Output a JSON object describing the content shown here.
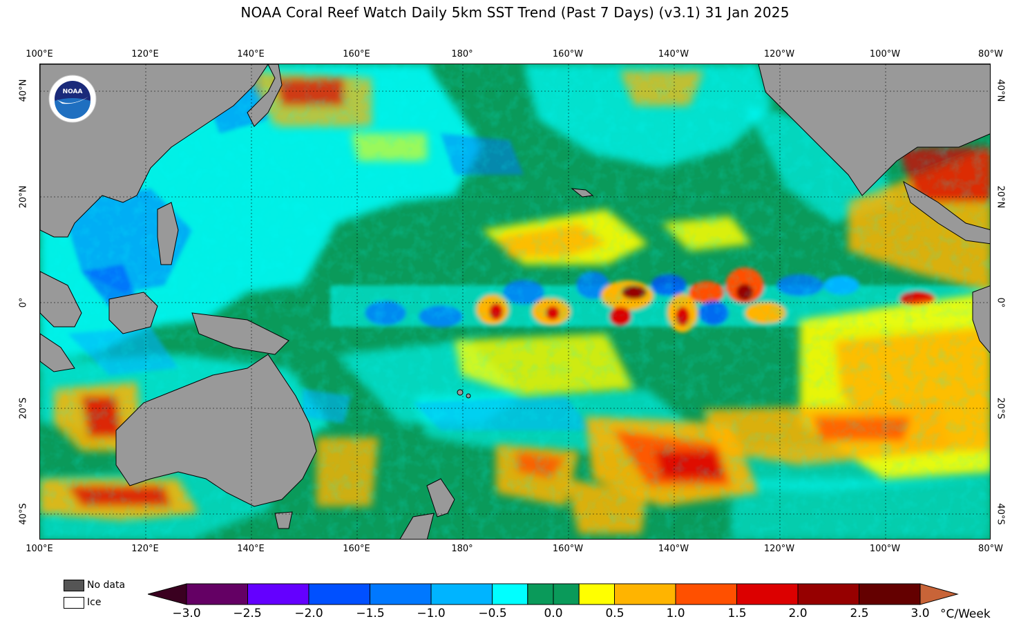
{
  "title": "NOAA Coral Reef Watch Daily 5km SST Trend (Past 7 Days)  (v3.1)   31 Jan 2025",
  "axes": {
    "longitude_ticks": [
      "100°E",
      "120°E",
      "140°E",
      "160°E",
      "180°",
      "160°W",
      "140°W",
      "120°W",
      "100°W",
      "80°W"
    ],
    "latitude_ticks_left": [
      "40°N",
      "20°N",
      "0°",
      "20°S",
      "40°S"
    ],
    "latitude_ticks_right": [
      "40°N",
      "20°N",
      "0°",
      "20°S",
      "40°S"
    ]
  },
  "logo": {
    "name": "noaa-logo",
    "text": "NOAA"
  },
  "legend": {
    "no_data_label": "No data",
    "ice_label": "Ice",
    "no_data_color": "#555555",
    "ice_color": "#ffffff",
    "land_color": "#999999"
  },
  "colorbar": {
    "unit": "°C/Week",
    "tick_labels": [
      "−3.0",
      "−2.5",
      "−2.0",
      "−1.5",
      "−1.0",
      "−0.5",
      "0.0",
      "0.5",
      "1.0",
      "1.5",
      "2.0",
      "2.5",
      "3.0"
    ],
    "under_color": "#3a0020",
    "over_color": "#c86438",
    "colors": [
      "#640064",
      "#6400ff",
      "#0050ff",
      "#0078ff",
      "#00b4ff",
      "#00ffff",
      "#0a9a5a",
      "#0a9a5a",
      "#ffff00",
      "#ffb400",
      "#ff5000",
      "#dc0000",
      "#960000",
      "#640000"
    ]
  }
}
